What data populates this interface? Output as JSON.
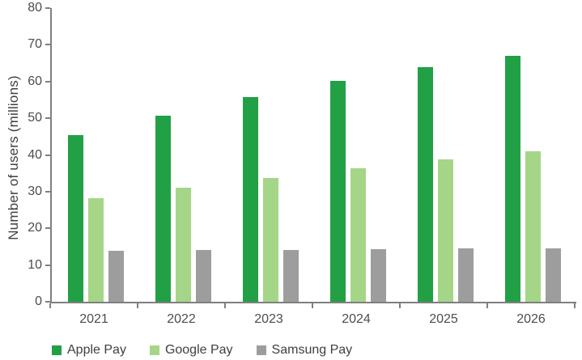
{
  "chart_data": {
    "type": "bar",
    "title": "",
    "categories": [
      "2021",
      "2022",
      "2023",
      "2024",
      "2025",
      "2026"
    ],
    "series": [
      {
        "name": "Apple Pay",
        "color": "#22A045",
        "values": [
          45.3,
          50.8,
          55.8,
          60.1,
          63.9,
          67.1
        ]
      },
      {
        "name": "Google Pay",
        "color": "#A5D687",
        "values": [
          28.3,
          31.1,
          33.8,
          36.4,
          38.8,
          40.9
        ]
      },
      {
        "name": "Samsung Pay",
        "color": "#9D9D9D",
        "values": [
          13.8,
          14.0,
          14.2,
          14.4,
          14.5,
          14.6
        ]
      }
    ],
    "xlabel": "",
    "ylabel": "Number of users (millions)",
    "ylim": [
      0,
      80
    ],
    "ytick_step": 10,
    "grid": false,
    "legend_position": "bottom-left",
    "axis_color": "#7f7f7f",
    "text_color": "#4d4d4d"
  }
}
